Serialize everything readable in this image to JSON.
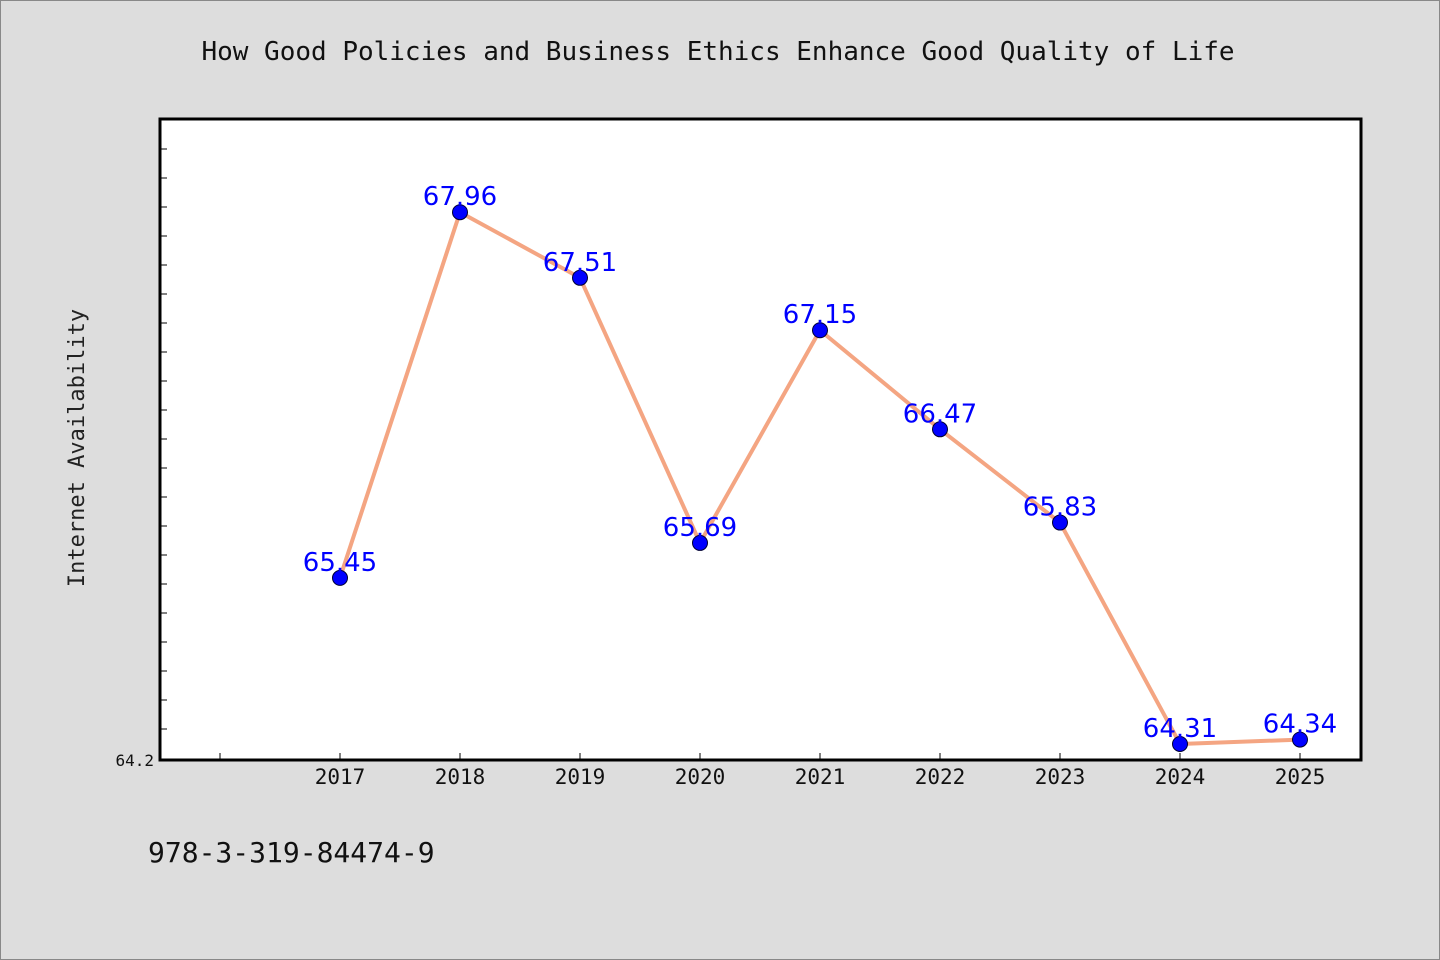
{
  "chart_data": {
    "type": "line",
    "title": "How Good Policies and Business Ethics Enhance Good Quality of Life",
    "xlabel": "",
    "ylabel": "Internet Availability",
    "categories": [
      "2017",
      "2018",
      "2019",
      "2020",
      "2021",
      "2022",
      "2023",
      "2024",
      "2025"
    ],
    "series": [
      {
        "values": [
          65.45,
          67.96,
          67.51,
          65.69,
          67.15,
          66.47,
          65.83,
          64.31,
          64.34
        ],
        "labels": [
          "65.45",
          "67.96",
          "67.51",
          "65.69",
          "67.15",
          "66.47",
          "65.83",
          "64.31",
          "64.34"
        ],
        "line_color": "#f4a582",
        "marker_color": "#0000ff"
      }
    ],
    "ytick_labels": [
      "64.2"
    ],
    "ylim": [
      64.2,
      68.6
    ],
    "grid": false,
    "label_color": "#0000ff"
  },
  "footer_text": "978-3-319-84474-9"
}
